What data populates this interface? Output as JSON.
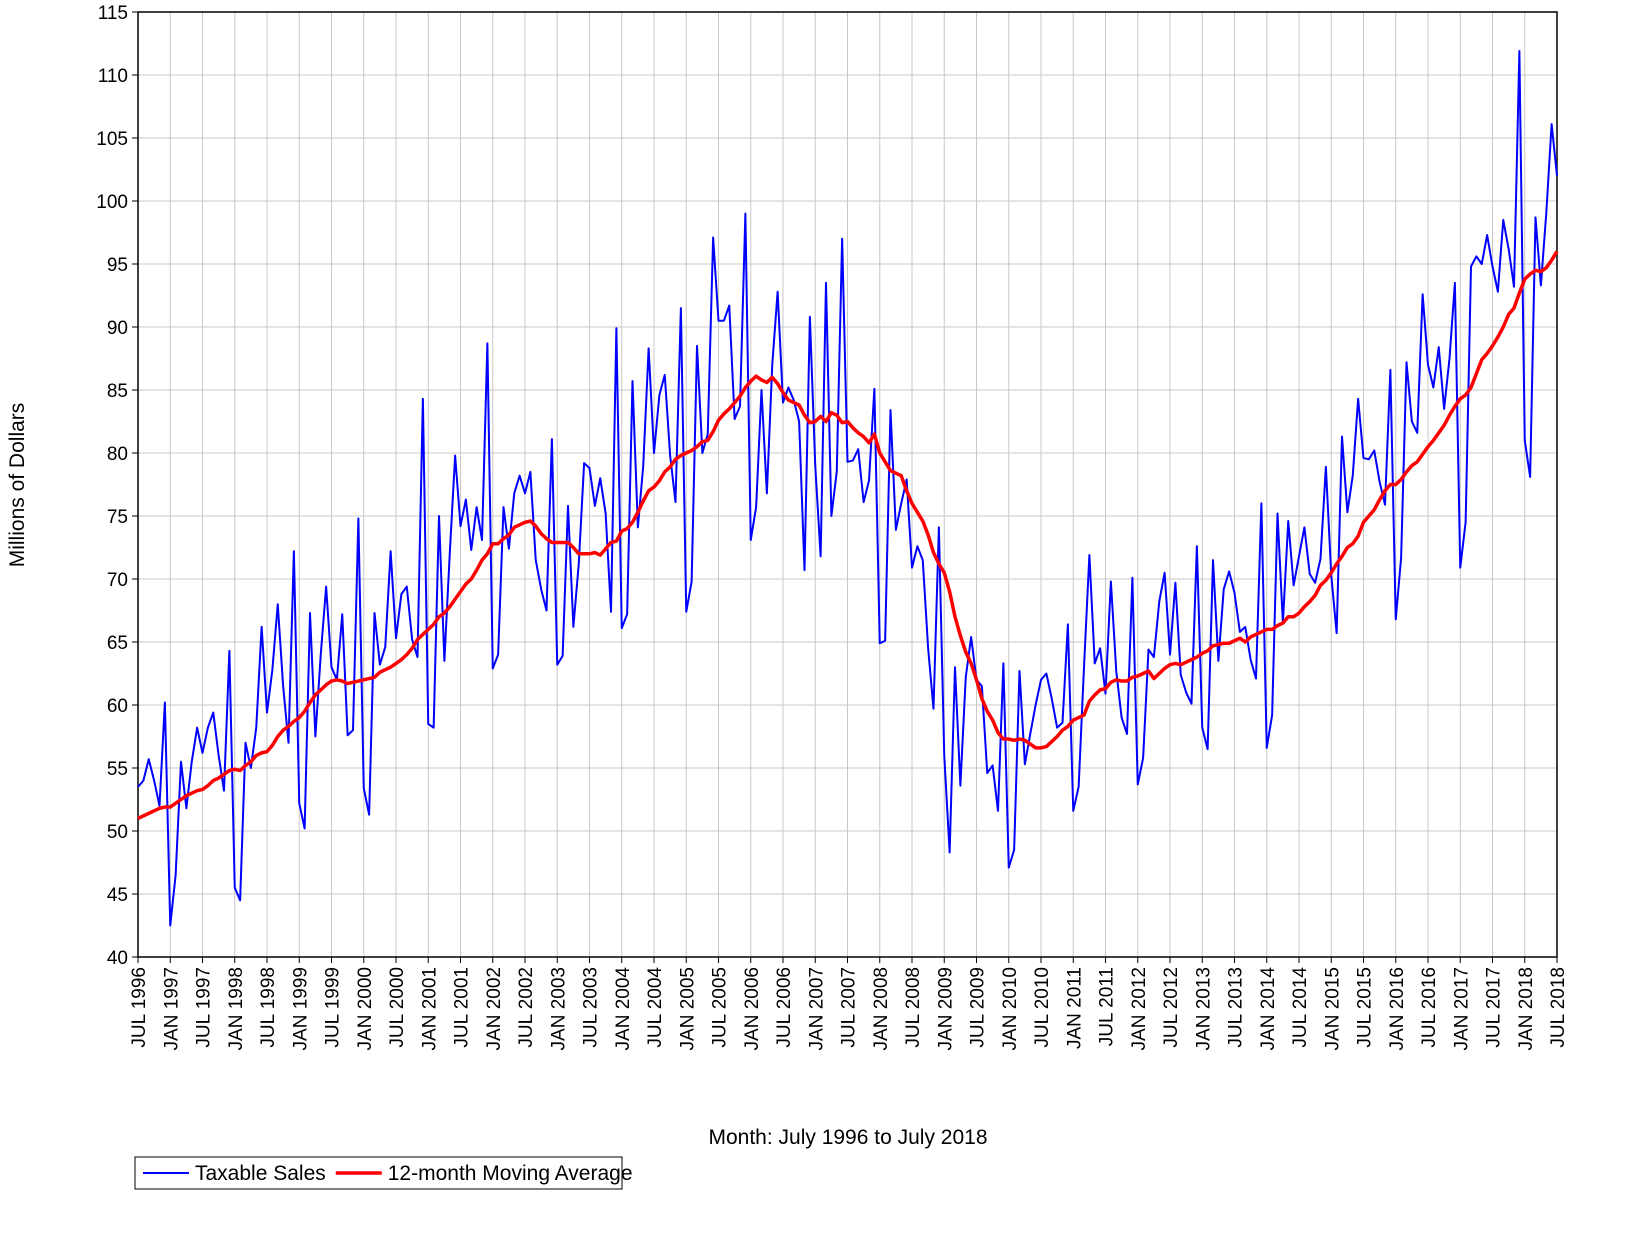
{
  "chart_data": {
    "type": "line",
    "x_label": "Month: July 1996 to July 2018",
    "y_label": "Millions of Dollars",
    "categories": [
      "JUL 1996",
      null,
      null,
      null,
      null,
      null,
      "JAN 1997",
      null,
      null,
      null,
      null,
      null,
      "JUL 1997",
      null,
      null,
      null,
      null,
      null,
      "JAN 1998",
      null,
      null,
      null,
      null,
      null,
      "JUL 1998",
      null,
      null,
      null,
      null,
      null,
      "JAN 1999",
      null,
      null,
      null,
      null,
      null,
      "JUL 1999",
      null,
      null,
      null,
      null,
      null,
      "JAN 2000",
      null,
      null,
      null,
      null,
      null,
      "JUL 2000",
      null,
      null,
      null,
      null,
      null,
      "JAN 2001",
      null,
      null,
      null,
      null,
      null,
      "JUL 2001",
      null,
      null,
      null,
      null,
      null,
      "JAN 2002",
      null,
      null,
      null,
      null,
      null,
      "JUL 2002",
      null,
      null,
      null,
      null,
      null,
      "JAN 2003",
      null,
      null,
      null,
      null,
      null,
      "JUL 2003",
      null,
      null,
      null,
      null,
      null,
      "JAN 2004",
      null,
      null,
      null,
      null,
      null,
      "JUL 2004",
      null,
      null,
      null,
      null,
      null,
      "JAN 2005",
      null,
      null,
      null,
      null,
      null,
      "JUL 2005",
      null,
      null,
      null,
      null,
      null,
      "JAN 2006",
      null,
      null,
      null,
      null,
      null,
      "JUL 2006",
      null,
      null,
      null,
      null,
      null,
      "JAN 2007",
      null,
      null,
      null,
      null,
      null,
      "JUL 2007",
      null,
      null,
      null,
      null,
      null,
      "JAN 2008",
      null,
      null,
      null,
      null,
      null,
      "JUL 2008",
      null,
      null,
      null,
      null,
      null,
      "JAN 2009",
      null,
      null,
      null,
      null,
      null,
      "JUL 2009",
      null,
      null,
      null,
      null,
      null,
      "JAN 2010",
      null,
      null,
      null,
      null,
      null,
      "JUL 2010",
      null,
      null,
      null,
      null,
      null,
      "JAN 2011",
      null,
      null,
      null,
      null,
      null,
      "JUL 2011",
      null,
      null,
      null,
      null,
      null,
      "JAN 2012",
      null,
      null,
      null,
      null,
      null,
      "JUL 2012",
      null,
      null,
      null,
      null,
      null,
      "JAN 2013",
      null,
      null,
      null,
      null,
      null,
      "JUL 2013",
      null,
      null,
      null,
      null,
      null,
      "JAN 2014",
      null,
      null,
      null,
      null,
      null,
      "JUL 2014",
      null,
      null,
      null,
      null,
      null,
      "JAN 2015",
      null,
      null,
      null,
      null,
      null,
      "JUL 2015",
      null,
      null,
      null,
      null,
      null,
      "JAN 2016",
      null,
      null,
      null,
      null,
      null,
      "JUL 2016",
      null,
      null,
      null,
      null,
      null,
      "JAN 2017",
      null,
      null,
      null,
      null,
      null,
      "JUL 2017",
      null,
      null,
      null,
      null,
      null,
      "JAN 2018",
      null,
      null,
      null,
      null,
      null,
      "JUL 2018"
    ],
    "series": [
      {
        "name": "Taxable Sales",
        "color": "#0000ff",
        "values": [
          53.5,
          54,
          55.7,
          54,
          52,
          60.2,
          42.5,
          46.5,
          55.5,
          51.8,
          55.5,
          58.2,
          56.2,
          58.2,
          59.4,
          56,
          53.2,
          64.3,
          45.5,
          44.5,
          57,
          55,
          58.2,
          66.2,
          59.4,
          62.8,
          68,
          61.5,
          57,
          72.2,
          52.2,
          50.2,
          67.3,
          57.5,
          64,
          69.4,
          63,
          62,
          67.2,
          57.6,
          58,
          74.8,
          53.4,
          51.3,
          67.3,
          63.2,
          64.6,
          72.2,
          65.3,
          68.8,
          69.4,
          65.2,
          63.8,
          84.3,
          58.5,
          58.2,
          75,
          63.5,
          72,
          79.8,
          74.2,
          76.3,
          72.3,
          75.7,
          73.1,
          88.7,
          62.9,
          64,
          75.7,
          72.4,
          76.8,
          78.2,
          76.8,
          78.5,
          71.5,
          69.2,
          67.5,
          81.1,
          63.2,
          63.9,
          75.8,
          66.2,
          71.2,
          79.2,
          78.8,
          75.8,
          78,
          75.2,
          67.4,
          89.9,
          66.1,
          67.2,
          85.7,
          74.1,
          79,
          88.3,
          80,
          84.6,
          86.2,
          79.8,
          76.1,
          91.5,
          67.4,
          69.8,
          88.5,
          80,
          81.5,
          97.1,
          90.5,
          90.5,
          91.7,
          82.7,
          83.7,
          99,
          73.1,
          75.7,
          85,
          76.8,
          87,
          92.8,
          84,
          85.2,
          84.2,
          82.5,
          70.7,
          90.8,
          79,
          71.8,
          93.5,
          75,
          78.5,
          97,
          79.3,
          79.4,
          80.3,
          76.1,
          77.8,
          85.1,
          64.9,
          65.1,
          83.4,
          73.9,
          76,
          77.9,
          70.9,
          72.6,
          71.5,
          64.5,
          59.7,
          74.1,
          56,
          48.3,
          63,
          53.6,
          62.2,
          65.4,
          62,
          61.5,
          54.6,
          55.2,
          51.6,
          63.3,
          47.1,
          48.5,
          62.7,
          55.3,
          57.7,
          60,
          62,
          62.5,
          60.5,
          58.2,
          58.6,
          66.4,
          51.6,
          53.5,
          63,
          71.9,
          63.3,
          64.5,
          60.9,
          69.8,
          62.7,
          59,
          57.7,
          70.1,
          53.7,
          55.8,
          64.4,
          63.8,
          68.2,
          70.5,
          64,
          69.7,
          62.4,
          61,
          60.1,
          72.6,
          58.2,
          56.5,
          71.5,
          63.5,
          69.2,
          70.6,
          68.9,
          65.8,
          66.2,
          63.6,
          62.1,
          76,
          56.6,
          59.2,
          75.2,
          66.5,
          74.6,
          69.5,
          71.8,
          74.1,
          70.4,
          69.7,
          71.6,
          78.9,
          70.3,
          65.7,
          81.3,
          75.3,
          78.2,
          84.3,
          79.6,
          79.5,
          80.2,
          77.7,
          75.9,
          86.6,
          66.8,
          71.7,
          87.2,
          82.5,
          81.6,
          92.6,
          87,
          85.2,
          88.4,
          83.5,
          87.5,
          93.5,
          70.9,
          74.5,
          94.8,
          95.6,
          95,
          97.3,
          94.8,
          92.8,
          98.5,
          96.2,
          93.2,
          111.9,
          81,
          78.1,
          98.7,
          93.3,
          99,
          106.1,
          102
        ]
      },
      {
        "name": "12-month Moving Average",
        "color": "#ff0000",
        "values": [
          51.0,
          51.2,
          51.4,
          51.6,
          51.8,
          51.9,
          51.9,
          52.2,
          52.5,
          52.8,
          53.0,
          53.2,
          53.3,
          53.6,
          54.0,
          54.2,
          54.5,
          54.8,
          54.9,
          54.8,
          55.2,
          55.5,
          56.0,
          56.2,
          56.3,
          56.8,
          57.5,
          58.0,
          58.3,
          58.7,
          59.0,
          59.5,
          60.2,
          60.8,
          61.2,
          61.6,
          61.9,
          62.0,
          61.9,
          61.7,
          61.8,
          61.9,
          62.0,
          62.1,
          62.2,
          62.6,
          62.8,
          63.0,
          63.3,
          63.6,
          64.0,
          64.5,
          65.2,
          65.6,
          66.0,
          66.4,
          67.0,
          67.3,
          67.8,
          68.4,
          69.0,
          69.6,
          70.0,
          70.7,
          71.5,
          72.0,
          72.8,
          72.8,
          73.2,
          73.5,
          74.1,
          74.3,
          74.5,
          74.6,
          74.2,
          73.6,
          73.2,
          72.9,
          72.9,
          72.9,
          72.9,
          72.5,
          72.0,
          72.0,
          72.0,
          72.1,
          71.9,
          72.4,
          72.9,
          73.0,
          73.8,
          74.0,
          74.5,
          75.3,
          76.2,
          77.0,
          77.3,
          77.8,
          78.5,
          78.9,
          79.5,
          79.8,
          80.0,
          80.2,
          80.5,
          80.9,
          81.0,
          81.7,
          82.6,
          83.1,
          83.5,
          84.0,
          84.5,
          85.2,
          85.7,
          86.1,
          85.8,
          85.6,
          86.0,
          85.5,
          84.8,
          84.2,
          84.0,
          83.8,
          83.0,
          82.4,
          82.5,
          82.9,
          82.5,
          83.2,
          83.0,
          82.4,
          82.5,
          82.0,
          81.6,
          81.3,
          80.8,
          81.5,
          80.0,
          79.3,
          78.6,
          78.4,
          78.2,
          77.0,
          76.0,
          75.3,
          74.6,
          73.5,
          72.1,
          71.2,
          70.5,
          69.0,
          67.0,
          65.5,
          64.2,
          63.3,
          62.0,
          60.5,
          59.5,
          58.8,
          57.8,
          57.3,
          57.3,
          57.2,
          57.3,
          57.2,
          56.9,
          56.6,
          56.6,
          56.7,
          57.1,
          57.5,
          58.0,
          58.3,
          58.8,
          59.0,
          59.2,
          60.3,
          60.8,
          61.2,
          61.3,
          61.8,
          62.0,
          61.9,
          61.9,
          62.2,
          62.3,
          62.5,
          62.7,
          62.1,
          62.5,
          62.9,
          63.2,
          63.3,
          63.2,
          63.4,
          63.6,
          63.8,
          64.1,
          64.3,
          64.7,
          64.8,
          64.9,
          64.9,
          65.1,
          65.3,
          65.0,
          65.4,
          65.6,
          65.8,
          66.0,
          66.0,
          66.3,
          66.5,
          67.0,
          67.0,
          67.3,
          67.8,
          68.2,
          68.7,
          69.5,
          69.9,
          70.5,
          71.2,
          71.8,
          72.5,
          72.8,
          73.4,
          74.5,
          75.0,
          75.5,
          76.3,
          77.0,
          77.5,
          77.5,
          77.9,
          78.5,
          79.0,
          79.3,
          79.9,
          80.5,
          81.0,
          81.6,
          82.2,
          83.0,
          83.7,
          84.3,
          84.6,
          85.2,
          86.3,
          87.4,
          87.9,
          88.5,
          89.2,
          90.0,
          91.0,
          91.5,
          92.7,
          93.8,
          94.2,
          94.5,
          94.4,
          94.7,
          95.3,
          96.0
        ]
      }
    ],
    "ylim": [
      40,
      115
    ],
    "yticks": [
      40,
      45,
      50,
      55,
      60,
      65,
      70,
      75,
      80,
      85,
      90,
      95,
      100,
      105,
      110,
      115
    ],
    "grid": true,
    "legend": "bottom-left"
  }
}
